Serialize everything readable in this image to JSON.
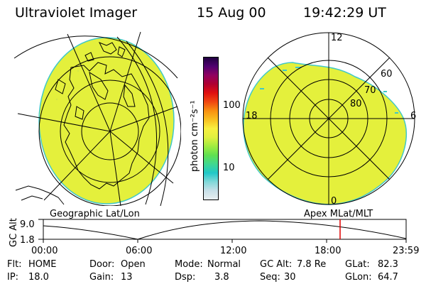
{
  "header": {
    "instrument": "Ultraviolet Imager",
    "date": "15 Aug 00",
    "time": "19:42:29 UT"
  },
  "left_panel": {
    "label": "Geographic Lat/Lon"
  },
  "right_panel": {
    "label": "Apex MLat/MLT",
    "mlt_labels": [
      "12",
      "18",
      "6",
      "0"
    ],
    "lat_labels": [
      "60",
      "70",
      "80"
    ]
  },
  "colorbar": {
    "unit_label": "photon cm⁻²s⁻¹",
    "tick_labels": [
      "100",
      "10"
    ],
    "tick_values": [
      100,
      10
    ],
    "colors": [
      "#e8eef0",
      "#c8e0e8",
      "#80d8d8",
      "#20c8c8",
      "#40d890",
      "#60e050",
      "#a0ec40",
      "#e0f040",
      "#f8f040",
      "#f8c020",
      "#f89010",
      "#f04810",
      "#e01010",
      "#b00030",
      "#900060",
      "#500070",
      "#200040"
    ]
  },
  "timeline": {
    "y_label": "GC Alt",
    "y_ticks": [
      "9.0",
      "1.8"
    ],
    "x_ticks": [
      "00:00",
      "06:00",
      "12:00",
      "18:00",
      "23:59"
    ],
    "marker_time": "19:42"
  },
  "info": {
    "flt_label": "Flt:",
    "flt_value": "HOME",
    "ip_label": "IP:",
    "ip_value": "18.0",
    "door_label": "Door:",
    "door_value": "Open",
    "gain_label": "Gain:",
    "gain_value": "13",
    "mode_label": "Mode:",
    "mode_value": "Normal",
    "dsp_label": "Dsp:",
    "dsp_value": "3.8",
    "gcalt_label": "GC Alt:",
    "gcalt_value": "7.8 Re",
    "seq_label": "Seq:",
    "seq_value": "30",
    "glat_label": "GLat:",
    "glat_value": "82.3",
    "glon_label": "GLon:",
    "glon_value": "64.7"
  },
  "colors": {
    "image_fill": "#e4f03c",
    "image_edge": "#40c8c8",
    "marker": "#e00000"
  }
}
